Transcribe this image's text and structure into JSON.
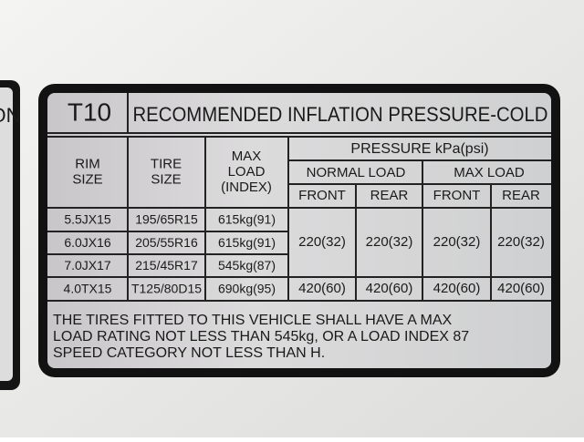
{
  "side_label": "ON",
  "header": {
    "code": "T10",
    "title": "RECOMMENDED INFLATION PRESSURE-COLD"
  },
  "table": {
    "headers": {
      "rim_size": [
        "RIM",
        "SIZE"
      ],
      "tire_size": [
        "TIRE",
        "SIZE"
      ],
      "max_load": [
        "MAX",
        "LOAD",
        "(INDEX)"
      ],
      "pressure": "PRESSURE kPa(psi)",
      "groups": [
        "NORMAL LOAD",
        "MAX LOAD"
      ],
      "positions": [
        "FRONT",
        "REAR",
        "FRONT",
        "REAR"
      ]
    },
    "rows": [
      [
        "5.5JX15",
        "195/65R15",
        "615kg(91)"
      ],
      [
        "6.0JX16",
        "205/55R16",
        "615kg(91)"
      ],
      [
        "7.0JX17",
        "215/45R17",
        "545kg(87)"
      ],
      [
        "4.0TX15",
        "T125/80D15",
        "690kg(95)"
      ]
    ],
    "pressures": [
      [
        "220(32)",
        "220(32)",
        "220(32)",
        "220(32)"
      ],
      [
        "420(60)",
        "420(60)",
        "420(60)",
        "420(60)"
      ]
    ]
  },
  "footer": [
    "THE TIRES FITTED TO THIS VEHICLE SHALL HAVE A MAX",
    "LOAD RATING NOT LESS THAN 545kg, OR A LOAD INDEX 87",
    "SPEED CATEGORY NOT LESS THAN H."
  ]
}
